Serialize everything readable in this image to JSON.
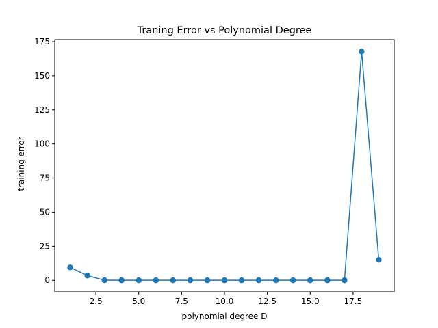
{
  "chart_data": {
    "type": "line",
    "title": "Traning Error vs Polynomial Degree",
    "xlabel": "polynomial degree D",
    "ylabel": "training error",
    "xlim": [
      0.1,
      19.9
    ],
    "ylim": [
      -8.4,
      176.5
    ],
    "xticks": [
      2.5,
      5.0,
      7.5,
      10.0,
      12.5,
      15.0,
      17.5
    ],
    "xtick_labels": [
      "2.5",
      "5.0",
      "7.5",
      "10.0",
      "12.5",
      "15.0",
      "17.5"
    ],
    "yticks": [
      0,
      25,
      50,
      75,
      100,
      125,
      150,
      175
    ],
    "ytick_labels": [
      "0",
      "25",
      "50",
      "75",
      "100",
      "125",
      "150",
      "175"
    ],
    "grid": false,
    "color": "#1f77b4",
    "series": [
      {
        "x": [
          1,
          2,
          3,
          4,
          5,
          6,
          7,
          8,
          9,
          10,
          11,
          12,
          13,
          14,
          15,
          16,
          17,
          18,
          19
        ],
        "y": [
          9.5,
          3.5,
          0.1,
          0.05,
          0.05,
          0.05,
          0.05,
          0.05,
          0.05,
          0.05,
          0.05,
          0.05,
          0.05,
          0.05,
          0.05,
          0.05,
          0.05,
          167.8,
          15.0
        ]
      }
    ]
  }
}
